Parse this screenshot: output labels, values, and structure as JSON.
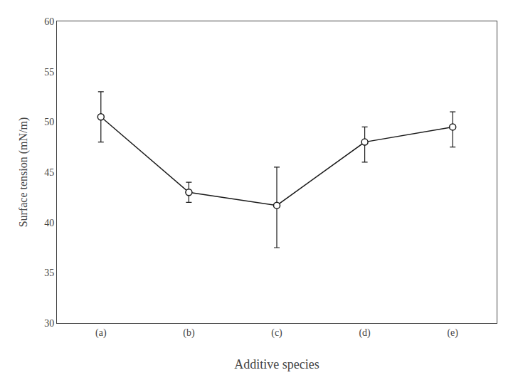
{
  "chart_data": {
    "type": "line",
    "categories": [
      "(a)",
      "(b)",
      "(c)",
      "(d)",
      "(e)"
    ],
    "values": [
      50.5,
      43.0,
      41.7,
      48.0,
      49.5
    ],
    "error_upper": [
      2.5,
      1.0,
      3.8,
      1.5,
      1.5
    ],
    "error_lower": [
      2.5,
      1.0,
      4.2,
      2.0,
      2.0
    ],
    "xlabel": "Additive species",
    "ylabel": "Surface tension (mN/m)",
    "ylim": [
      30,
      60
    ],
    "yticks": [
      30,
      35,
      40,
      45,
      50,
      55,
      60
    ],
    "color": "#1a1a1a",
    "marker": "circle-open",
    "line_style": "solid",
    "grid": false
  }
}
